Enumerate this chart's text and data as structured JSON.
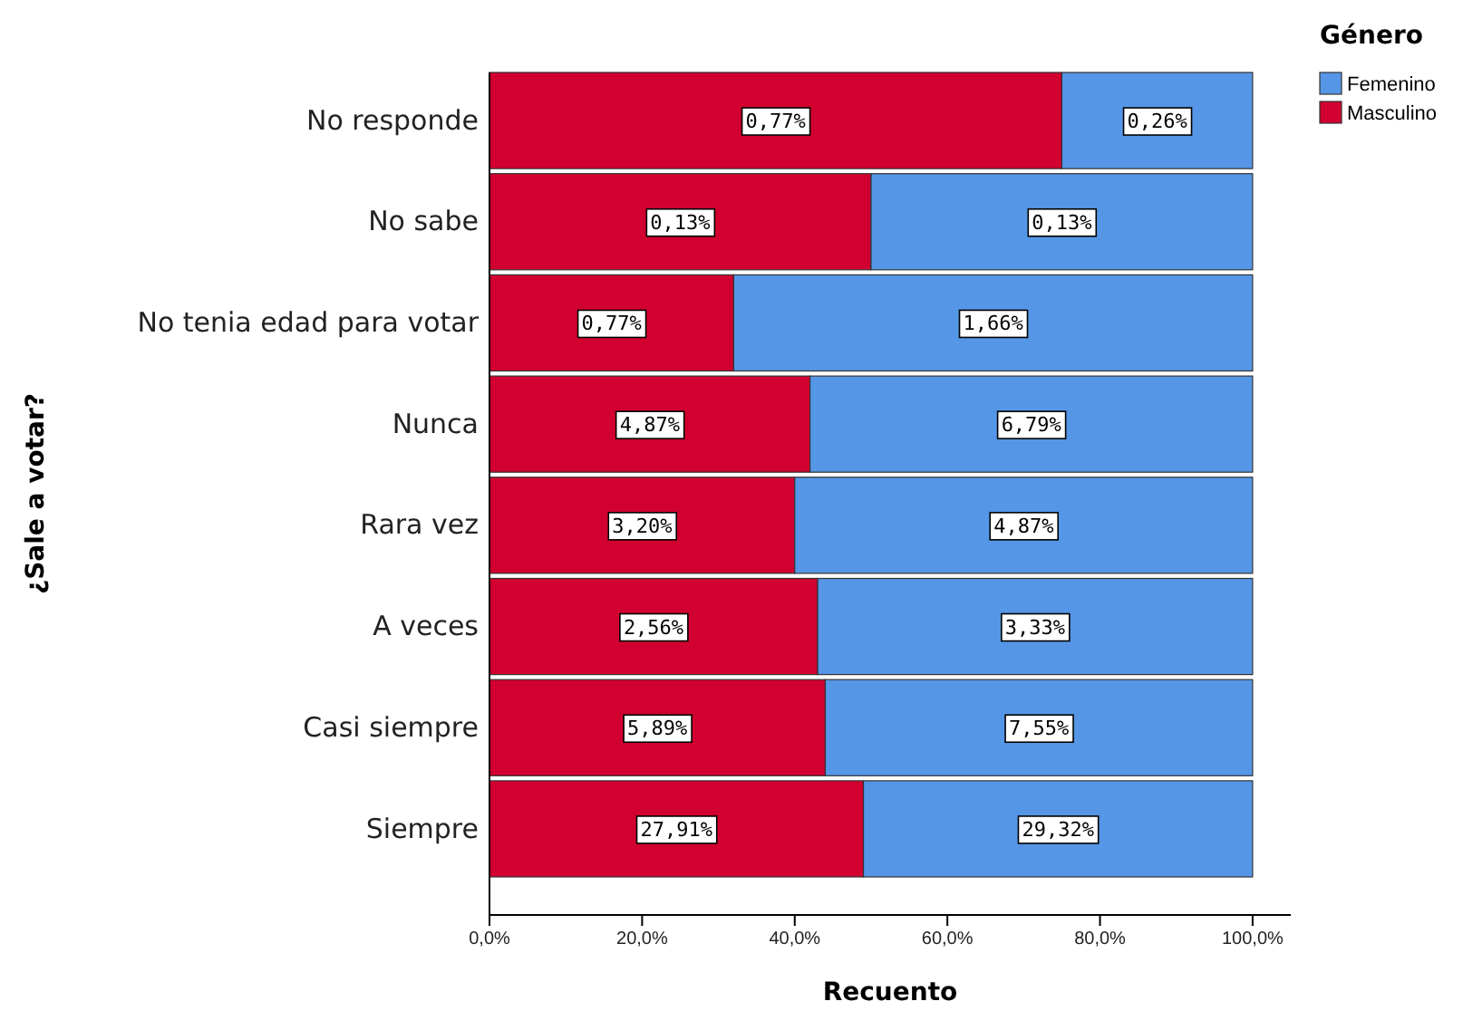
{
  "chart_data": {
    "type": "bar",
    "orientation": "horizontal",
    "stacked": true,
    "categories": [
      "No responde",
      "No sabe",
      "No tenia edad para votar",
      "Nunca",
      "Rara vez",
      "A veces",
      "Casi siempre",
      "Siempre"
    ],
    "series": [
      {
        "name": "Masculino",
        "color": "#d20030",
        "values": [
          75,
          50,
          32,
          42,
          40,
          43,
          44,
          49
        ]
      },
      {
        "name": "Femenino",
        "color": "#5596e6",
        "values": [
          25,
          50,
          68,
          58,
          60,
          57,
          56,
          51
        ]
      }
    ],
    "annotations": [
      {
        "text": "0,77%",
        "x": 37.5,
        "y": "No responde"
      },
      {
        "text": "0,26%",
        "x": 87.5,
        "y": "No responde"
      },
      {
        "text": "0,13%",
        "x": 25,
        "y": "No sabe"
      },
      {
        "text": "0,13%",
        "x": 75,
        "y": "No sabe"
      },
      {
        "text": "0,77%",
        "x": 16,
        "y": "No tenia edad para votar"
      },
      {
        "text": "1,66%",
        "x": 66,
        "y": "No tenia edad para votar"
      },
      {
        "text": "4,87%",
        "x": 21,
        "y": "Nunca"
      },
      {
        "text": "6,79%",
        "x": 71,
        "y": "Nunca"
      },
      {
        "text": "3,20%",
        "x": 20,
        "y": "Rara vez"
      },
      {
        "text": "4,87%",
        "x": 70,
        "y": "Rara vez"
      },
      {
        "text": "2,56%",
        "x": 21.5,
        "y": "A veces"
      },
      {
        "text": "3,33%",
        "x": 71.5,
        "y": "A veces"
      },
      {
        "text": "5,89%",
        "x": 22,
        "y": "Casi siempre"
      },
      {
        "text": "7,55%",
        "x": 72,
        "y": "Casi siempre"
      },
      {
        "text": "27,91%",
        "x": 24.5,
        "y": "Siempre"
      },
      {
        "text": "29,32%",
        "x": 74.5,
        "y": "Siempre"
      }
    ],
    "xlim": [
      0,
      105
    ],
    "xticks": [
      {
        "value": 0,
        "label": "0,0%"
      },
      {
        "value": 20,
        "label": "20,0%"
      },
      {
        "value": 40,
        "label": "40,0%"
      },
      {
        "value": 60,
        "label": "60,0%"
      },
      {
        "value": 80,
        "label": "80,0%"
      },
      {
        "value": 100,
        "label": "100,0%"
      }
    ],
    "xlabel": "Recuento",
    "ylabel": "¿Sale a votar?",
    "legend_title": "Género",
    "legend": "top right",
    "grid": false
  }
}
